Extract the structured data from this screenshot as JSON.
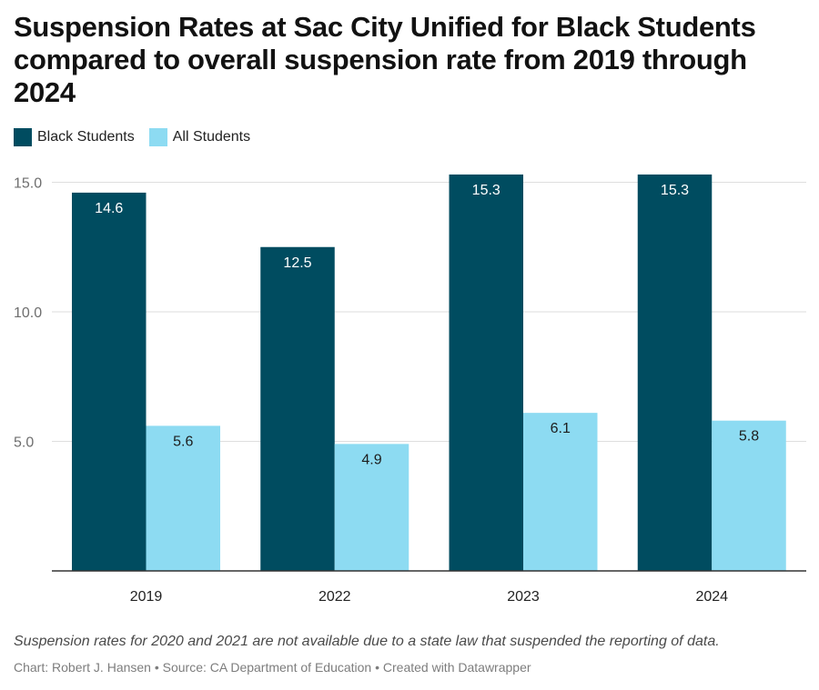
{
  "chart_data": {
    "type": "bar",
    "title": "Suspension Rates at Sac City Unified for Black Students compared to overall suspension rate from 2019 through 2024",
    "categories": [
      "2019",
      "2022",
      "2023",
      "2024"
    ],
    "series": [
      {
        "name": "Black Students",
        "color": "#004c60",
        "values": [
          14.6,
          12.5,
          15.3,
          15.3
        ],
        "labels": [
          "14.6",
          "12.5",
          "15.3",
          "15.3"
        ]
      },
      {
        "name": "All Students",
        "color": "#8ddbf2",
        "values": [
          5.6,
          4.9,
          6.1,
          5.8
        ],
        "labels": [
          "5.6",
          "4.9",
          "6.1",
          "5.8"
        ]
      }
    ],
    "yticks": [
      5,
      10,
      15
    ],
    "ytick_labels": [
      "5.0",
      "10.0",
      "15.0"
    ],
    "ylim": [
      0,
      15.3
    ],
    "xlabel": "",
    "ylabel": "",
    "legend_position": "top-left",
    "grid": true
  },
  "notes": "Suspension rates for 2020 and 2021 are not available due to a state law that suspended the reporting of data.",
  "credits": "Chart: Robert J. Hansen • Source: CA Department of Education • Created with Datawrapper"
}
